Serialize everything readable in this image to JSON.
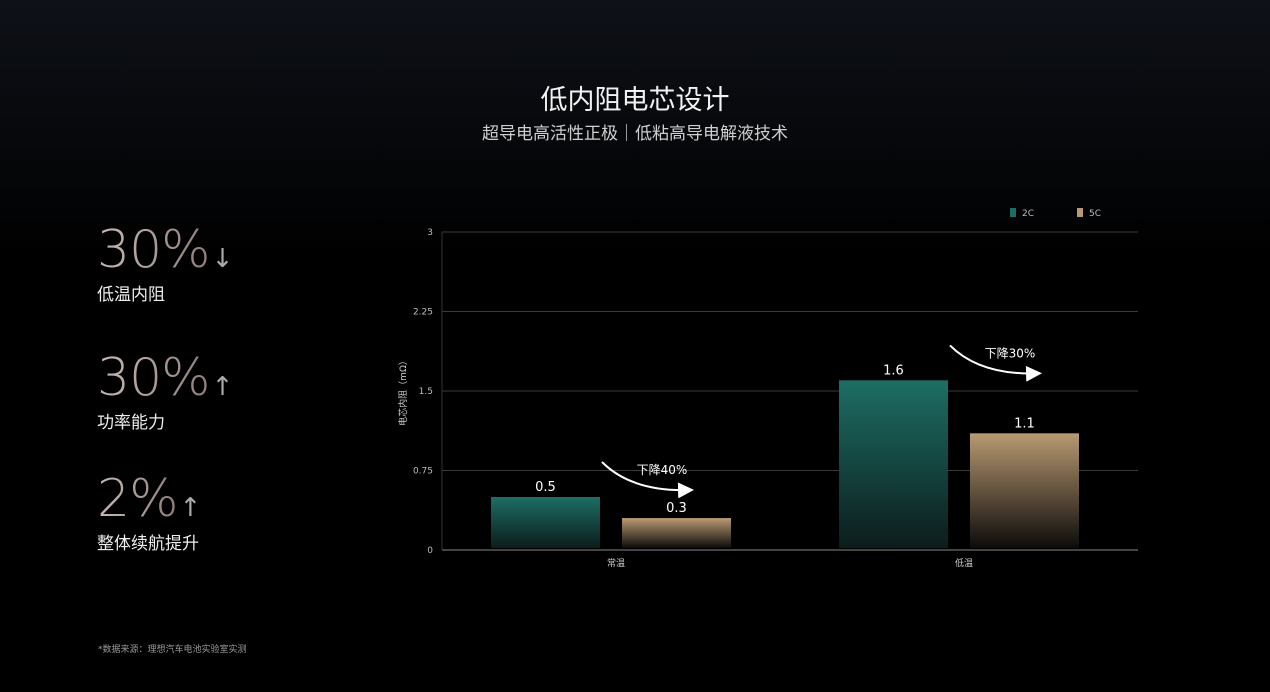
{
  "header": {
    "title": "低内阻电芯设计",
    "subtitle": "超导电高活性正极｜低粘高导电解液技术"
  },
  "stats": [
    {
      "value": "30%",
      "arrow": "↓",
      "label": "低温内阻"
    },
    {
      "value": "30%",
      "arrow": "↑",
      "label": "功率能力"
    },
    {
      "value": "2%",
      "arrow": "↑",
      "label": "整体续航提升"
    }
  ],
  "footnote": "*数据来源：理想汽车电池实验室实测",
  "chart_data": {
    "type": "bar",
    "categories": [
      "常温",
      "低温"
    ],
    "series": [
      {
        "name": "2C",
        "values": [
          0.5,
          1.6
        ],
        "color": "#1f6d64"
      },
      {
        "name": "5C",
        "values": [
          0.3,
          1.1
        ],
        "color": "#b89a72"
      }
    ],
    "ylabel": "电芯内阻（mΩ）",
    "ylim": [
      0,
      3
    ],
    "yticks": [
      "0",
      "0.75",
      "1.5",
      "2.25",
      "3"
    ],
    "grid": true,
    "legend": "top-right",
    "annotations": [
      "下降40%",
      "下降30%"
    ]
  }
}
